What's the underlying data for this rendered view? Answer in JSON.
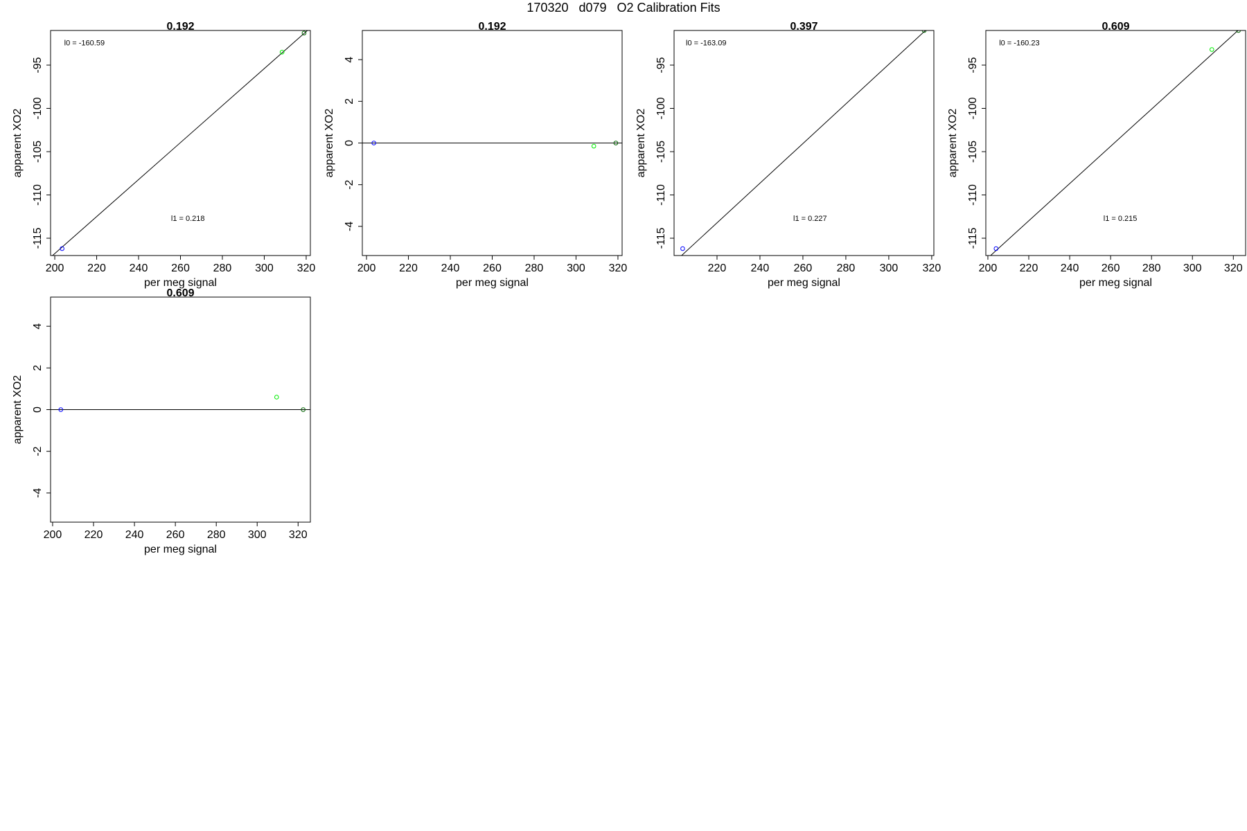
{
  "figure_title": "170320   d079   O2 Calibration Fits",
  "chart_data": [
    {
      "type": "scatter",
      "title": "0.192",
      "xlabel": "per meg signal",
      "ylabel": "apparent XO2",
      "xlim": [
        198,
        322
      ],
      "ylim": [
        -117,
        -91
      ],
      "xticks": [
        200,
        220,
        240,
        260,
        280,
        300,
        320
      ],
      "yticks": [
        -115,
        -110,
        -105,
        -100,
        -95
      ],
      "fit_line": [
        [
          198,
          -117.2
        ],
        [
          322,
          -90.7
        ]
      ],
      "annotations": [
        {
          "text": "l0 =  -160.59",
          "x": 204.5,
          "y": -92.7
        },
        {
          "text": "l1 =  0.218",
          "x": 255.5,
          "y": -113.0
        }
      ],
      "points": [
        {
          "x": 203.5,
          "y": -116.2,
          "color": "#0000ff"
        },
        {
          "x": 308.5,
          "y": -93.5,
          "color": "#00ee00"
        },
        {
          "x": 319,
          "y": -91.3,
          "color": "#006400"
        }
      ]
    },
    {
      "type": "scatter",
      "title": "0.192",
      "xlabel": "per meg signal",
      "ylabel": "apparent XO2",
      "xlim": [
        198,
        322
      ],
      "ylim": [
        -5.4,
        5.4
      ],
      "xticks": [
        200,
        220,
        240,
        260,
        280,
        300,
        320
      ],
      "yticks": [
        -4,
        -2,
        0,
        2,
        4
      ],
      "fit_line": [
        [
          198,
          0
        ],
        [
          322,
          0
        ]
      ],
      "annotations": [],
      "points": [
        {
          "x": 203.5,
          "y": 0,
          "color": "#0000ff"
        },
        {
          "x": 308.5,
          "y": -0.15,
          "color": "#00ee00"
        },
        {
          "x": 319,
          "y": 0,
          "color": "#006400"
        }
      ]
    },
    {
      "type": "scatter",
      "title": "0.397",
      "xlabel": "per meg signal",
      "ylabel": "apparent XO2",
      "xlim": [
        200,
        321
      ],
      "ylim": [
        -117,
        -91
      ],
      "xticks": [
        220,
        240,
        260,
        280,
        300,
        320
      ],
      "yticks": [
        -115,
        -110,
        -105,
        -100,
        -95
      ],
      "fit_line": [
        [
          200,
          -117.8
        ],
        [
          321,
          -90.1
        ]
      ],
      "annotations": [
        {
          "text": "l0 =  -163.09",
          "x": 205.5,
          "y": -92.7
        },
        {
          "text": "l1 =  0.227",
          "x": 255.5,
          "y": -113.0
        }
      ],
      "points": [
        {
          "x": 204,
          "y": -116.2,
          "color": "#0000ff"
        },
        {
          "x": 316.5,
          "y": -91.0,
          "color": "#006400"
        }
      ]
    },
    {
      "type": "scatter",
      "title": "0.609",
      "xlabel": "per meg signal",
      "ylabel": "apparent XO2",
      "xlim": [
        199,
        326
      ],
      "ylim": [
        -117,
        -91
      ],
      "xticks": [
        200,
        220,
        240,
        260,
        280,
        300,
        320
      ],
      "yticks": [
        -115,
        -110,
        -105,
        -100,
        -95
      ],
      "fit_line": [
        [
          199,
          -117.5
        ],
        [
          326,
          -90.2
        ]
      ],
      "annotations": [
        {
          "text": "l0 =  -160.23",
          "x": 205.5,
          "y": -92.7
        },
        {
          "text": "l1 =  0.215",
          "x": 256.5,
          "y": -113.0
        }
      ],
      "points": [
        {
          "x": 204,
          "y": -116.2,
          "color": "#0000ff"
        },
        {
          "x": 309.5,
          "y": -93.2,
          "color": "#00ee00"
        },
        {
          "x": 322.5,
          "y": -91.0,
          "color": "#006400"
        }
      ]
    },
    {
      "type": "scatter",
      "title": "0.609",
      "xlabel": "per meg signal",
      "ylabel": "apparent XO2",
      "xlim": [
        199,
        326
      ],
      "ylim": [
        -5.4,
        5.4
      ],
      "xticks": [
        200,
        220,
        240,
        260,
        280,
        300,
        320
      ],
      "yticks": [
        -4,
        -2,
        0,
        2,
        4
      ],
      "fit_line": [
        [
          199,
          0
        ],
        [
          326,
          0
        ]
      ],
      "annotations": [],
      "points": [
        {
          "x": 204,
          "y": 0,
          "color": "#0000ff"
        },
        {
          "x": 309.5,
          "y": 0.6,
          "color": "#00ee00"
        },
        {
          "x": 322.5,
          "y": 0,
          "color": "#006400"
        }
      ]
    }
  ]
}
